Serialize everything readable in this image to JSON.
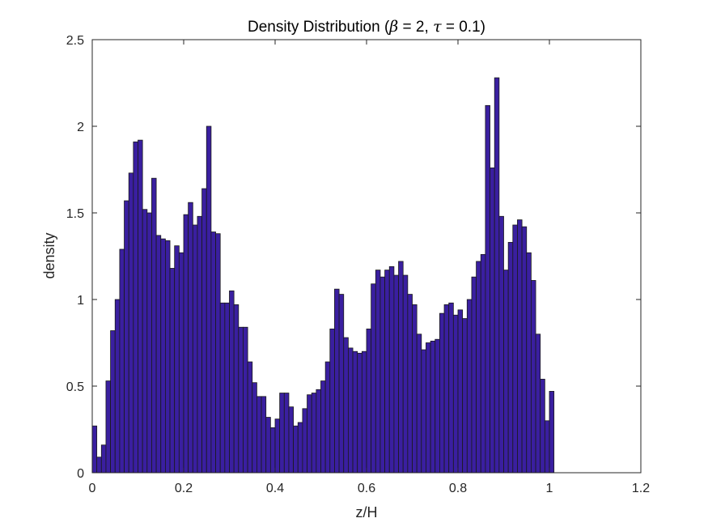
{
  "chart_data": {
    "type": "bar",
    "title": {
      "prefix": "Density Distribution (",
      "beta_symbol": "β",
      "beta_eq": " = 2, ",
      "tau_symbol": "τ",
      "tau_eq": " = 0.1)"
    },
    "xlabel": "z/H",
    "ylabel": "density",
    "xlim": [
      0,
      1.2
    ],
    "ylim": [
      0,
      2.5
    ],
    "xticks": [
      0,
      0.2,
      0.4,
      0.6,
      0.8,
      1,
      1.2
    ],
    "xtick_labels": [
      "0",
      "0.2",
      "0.4",
      "0.6",
      "0.8",
      "1",
      "1.2"
    ],
    "yticks": [
      0,
      0.5,
      1,
      1.5,
      2,
      2.5
    ],
    "ytick_labels": [
      "0",
      "0.5",
      "1",
      "1.5",
      "2",
      "2.5"
    ],
    "grid": false,
    "bar_color": "#3a1fa0",
    "bar_edge_color": "#1a1a1a",
    "bin_start": 0,
    "bin_width": 0.01,
    "values": [
      0.27,
      0.09,
      0.16,
      0.53,
      0.82,
      1.0,
      1.29,
      1.57,
      1.73,
      1.91,
      1.92,
      1.52,
      1.5,
      1.7,
      1.37,
      1.35,
      1.34,
      1.18,
      1.31,
      1.27,
      1.49,
      1.56,
      1.43,
      1.48,
      1.64,
      2.0,
      1.39,
      1.38,
      0.98,
      0.98,
      1.05,
      0.97,
      0.84,
      0.84,
      0.64,
      0.52,
      0.44,
      0.44,
      0.32,
      0.26,
      0.31,
      0.46,
      0.46,
      0.38,
      0.27,
      0.29,
      0.37,
      0.45,
      0.46,
      0.48,
      0.53,
      0.64,
      0.83,
      1.06,
      1.03,
      0.78,
      0.72,
      0.7,
      0.69,
      0.7,
      0.83,
      1.09,
      1.17,
      1.13,
      1.17,
      1.19,
      1.14,
      1.22,
      1.14,
      1.03,
      0.97,
      0.8,
      0.71,
      0.75,
      0.76,
      0.77,
      0.92,
      0.97,
      0.98,
      0.91,
      0.94,
      0.89,
      1.0,
      1.13,
      1.22,
      1.26,
      2.12,
      1.76,
      2.28,
      1.48,
      1.17,
      1.33,
      1.43,
      1.46,
      1.42,
      1.27,
      1.11,
      0.8,
      0.54,
      0.3,
      0.47
    ]
  }
}
